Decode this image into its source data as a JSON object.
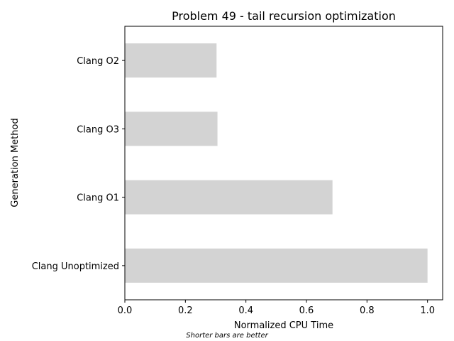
{
  "chart_data": {
    "type": "bar",
    "orientation": "horizontal",
    "title": "Problem 49 - tail recursion optimization",
    "xlabel": "Normalized CPU Time",
    "ylabel": "Generation Method",
    "categories": [
      "Clang O2",
      "Clang O3",
      "Clang O1",
      "Clang Unoptimized"
    ],
    "values": [
      0.303,
      0.306,
      0.686,
      1.0
    ],
    "xlim": [
      0,
      1.05
    ],
    "xticks": [
      0.0,
      0.2,
      0.4,
      0.6,
      0.8,
      1.0
    ],
    "xtick_labels": [
      "0.0",
      "0.2",
      "0.4",
      "0.6",
      "0.8",
      "1.0"
    ],
    "bar_color": "#d3d3d3",
    "grid": false,
    "legend": "none",
    "annotation": "Shorter bars are better"
  }
}
